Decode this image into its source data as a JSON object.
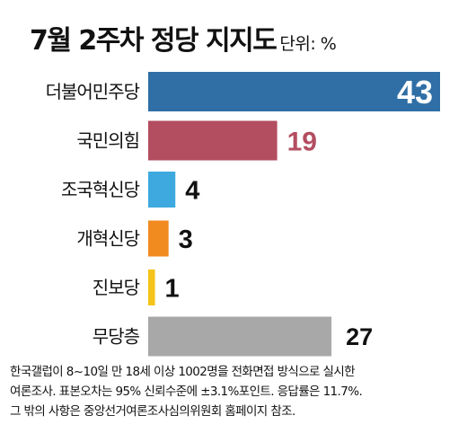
{
  "title": "7월 2주차 정당 지지도",
  "unit": "단위: %",
  "chart_data": {
    "type": "bar",
    "orientation": "horizontal",
    "categories": [
      "더불어민주당",
      "국민의힘",
      "조국혁신당",
      "개혁신당",
      "진보당",
      "무당층"
    ],
    "values": [
      43,
      19,
      4,
      3,
      1,
      27
    ],
    "colors": [
      "#2f6fa6",
      "#b34d60",
      "#3ea9de",
      "#f18a1f",
      "#f4c419",
      "#a8a8a8"
    ],
    "value_label_colors": [
      "#ffffff",
      "#b34d60",
      "#111111",
      "#111111",
      "#111111",
      "#111111"
    ],
    "title": "7월 2주차 정당 지지도",
    "xlim": [
      0,
      43
    ],
    "grid": false,
    "legend": "none"
  },
  "footnote": [
    "한국갤럽이 8~10일 만 18세 이상 1002명을 전화면접 방식으로 실시한",
    "여론조사. 표본오차는 95% 신뢰수준에 ±3.1%포인트. 응답률은 11.7%.",
    "그 밖의 사항은 중앙선거여론조사심의위원회 홈페이지 참조."
  ]
}
